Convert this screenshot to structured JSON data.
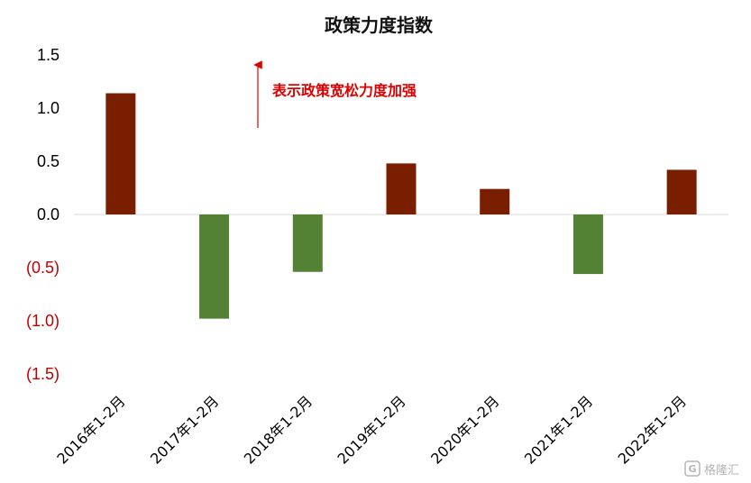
{
  "chart_data": {
    "type": "bar",
    "title": "政策力度指数",
    "xlabel": "",
    "ylabel": "",
    "categories": [
      "2016年1-2月",
      "2017年1-2月",
      "2018年1-2月",
      "2019年1-2月",
      "2020年1-2月",
      "2021年1-2月",
      "2022年1-2月"
    ],
    "values": [
      1.14,
      -0.98,
      -0.54,
      0.48,
      0.24,
      -0.56,
      0.42
    ],
    "ylim": [
      -1.5,
      1.5
    ],
    "yticks": [
      1.5,
      1.0,
      0.5,
      0.0,
      -0.5,
      -1.0,
      -1.5
    ],
    "ytick_labels": [
      "1.5",
      "1.0",
      "0.5",
      "0.0",
      "(0.5)",
      "(1.0)",
      "(1.5)"
    ],
    "grid": false,
    "legend": "none",
    "colors": {
      "positive": "#7a1e00",
      "negative": "#548235",
      "negative_tick": "#c00000",
      "positive_tick": "#000000",
      "annotation": "#e00000",
      "baseline": "#d9d9d9"
    },
    "annotation": {
      "text": "表示政策宽松力度加强",
      "arrow_direction": "up"
    }
  },
  "watermark": {
    "text": "格隆汇",
    "icon": "g-logo-icon"
  }
}
